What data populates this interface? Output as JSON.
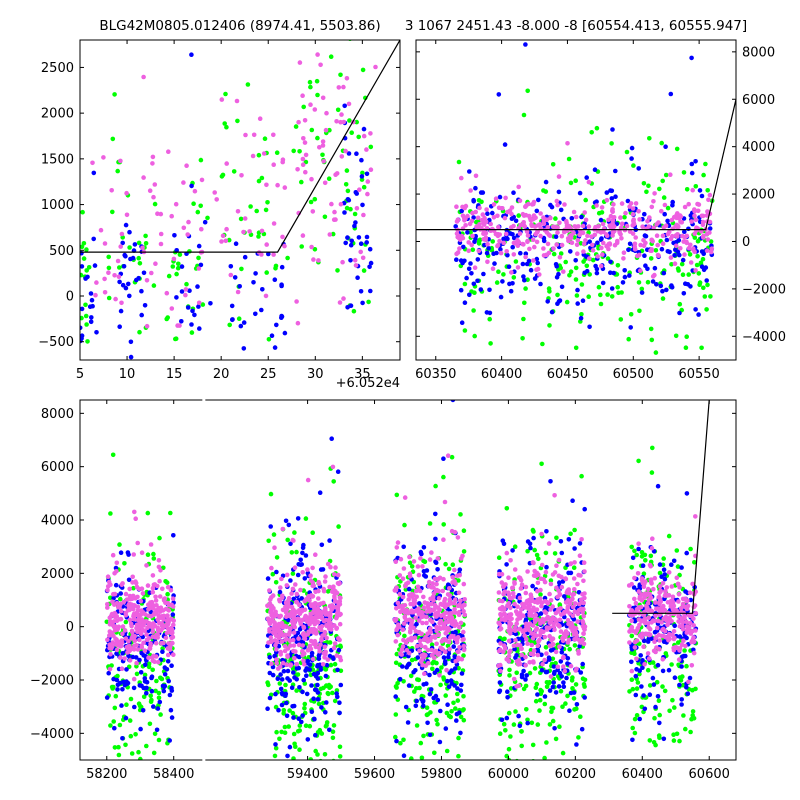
{
  "colors": {
    "green": "#00ff00",
    "blue": "#0000ff",
    "pink": "#ee60e0",
    "line": "#000000"
  },
  "chart_data": [
    {
      "type": "scatter",
      "title": "BLG42M0805.012406 (8974.41, 5503.86)",
      "x_offset_label": "+6.052e4",
      "xlim": [
        5,
        39
      ],
      "ylim": [
        -700,
        2800
      ],
      "xticks": [
        5,
        10,
        15,
        20,
        25,
        30,
        35
      ],
      "yticks": [
        -500,
        0,
        500,
        1000,
        1500,
        2000,
        2500
      ],
      "model_line": {
        "x": [
          5,
          26,
          39
        ],
        "y": [
          480,
          480,
          2800
        ]
      },
      "series": [
        {
          "color_key": "green",
          "clusters": [
            [
              5,
              6,
              300,
              500,
              14
            ],
            [
              8,
              13,
              700,
              700,
              28
            ],
            [
              14,
              19,
              400,
              600,
              28
            ],
            [
              20,
              26,
              900,
              650,
              36
            ],
            [
              27,
              36,
              1200,
              750,
              60
            ]
          ]
        },
        {
          "color_key": "blue",
          "clusters": [
            [
              5,
              7,
              -100,
              380,
              26
            ],
            [
              9,
              12,
              0,
              420,
              30
            ],
            [
              15,
              19,
              200,
              500,
              22
            ],
            [
              21,
              27,
              -100,
              430,
              34
            ],
            [
              33,
              36,
              500,
              600,
              40
            ]
          ]
        },
        {
          "color_key": "pink",
          "clusters": [
            [
              6,
              10,
              600,
              500,
              20
            ],
            [
              11,
              18,
              600,
              600,
              40
            ],
            [
              19,
              27,
              800,
              650,
              40
            ],
            [
              28,
              36.5,
              1300,
              750,
              70
            ]
          ]
        }
      ]
    },
    {
      "type": "scatter",
      "title": "3 1067 2451.43 -8.000 -8 [60554.413, 60555.947]",
      "xlim": [
        60335,
        60578
      ],
      "ylim": [
        -5000,
        8500
      ],
      "xticks": [
        60350,
        60400,
        60450,
        60500,
        60550
      ],
      "yticks": [
        -4000,
        -2000,
        0,
        2000,
        4000,
        6000,
        8000
      ],
      "yaxis_side": "right",
      "model_line": {
        "x": [
          60335,
          60555,
          60578
        ],
        "y": [
          500,
          500,
          6000
        ]
      },
      "series": [
        {
          "color_key": "green",
          "clusters": [
            [
              60365,
              60560,
              -700,
              1900,
              260
            ]
          ]
        },
        {
          "color_key": "blue",
          "clusters": [
            [
              60365,
              60560,
              -200,
              1400,
              320
            ]
          ]
        },
        {
          "color_key": "pink",
          "clusters": [
            [
              60365,
              60560,
              400,
              700,
              420
            ]
          ]
        }
      ]
    },
    {
      "type": "scatter",
      "xlim": [
        58120,
        60680
      ],
      "ylim": [
        -5000,
        8500
      ],
      "xticks": [
        58200,
        58400,
        59400,
        59600,
        59800,
        60000,
        60200,
        60400,
        60600
      ],
      "yticks": [
        -4000,
        -2000,
        0,
        2000,
        4000,
        6000,
        8000
      ],
      "axis_break": 58490,
      "x_segments": [
        [
          58120,
          58490,
          1000
        ],
        [
          59090,
          60680,
          0
        ]
      ],
      "model_line": {
        "x": [
          60310,
          60550,
          60600
        ],
        "y": [
          500,
          500,
          8500
        ]
      },
      "series": [
        {
          "color_key": "green",
          "clusters": [
            [
              58200,
              58400,
              -1500,
              2300,
              160
            ],
            [
              59280,
              59500,
              -2000,
              2200,
              240
            ],
            [
              59660,
              59870,
              -1300,
              2100,
              200
            ],
            [
              59970,
              60230,
              -1300,
              2100,
              220
            ],
            [
              60360,
              60560,
              -900,
              2100,
              170
            ]
          ]
        },
        {
          "color_key": "blue",
          "clusters": [
            [
              58200,
              58400,
              -800,
              1500,
              170
            ],
            [
              59280,
              59500,
              -800,
              1700,
              240
            ],
            [
              59660,
              59870,
              -600,
              1600,
              200
            ],
            [
              59970,
              60230,
              -600,
              1500,
              230
            ],
            [
              60360,
              60560,
              -400,
              1500,
              170
            ]
          ]
        },
        {
          "color_key": "pink",
          "clusters": [
            [
              58200,
              58400,
              150,
              800,
              320
            ],
            [
              59280,
              59500,
              200,
              800,
              360
            ],
            [
              59660,
              59870,
              300,
              900,
              320
            ],
            [
              59970,
              60230,
              300,
              900,
              380
            ],
            [
              60360,
              60560,
              400,
              800,
              260
            ]
          ]
        }
      ]
    }
  ]
}
